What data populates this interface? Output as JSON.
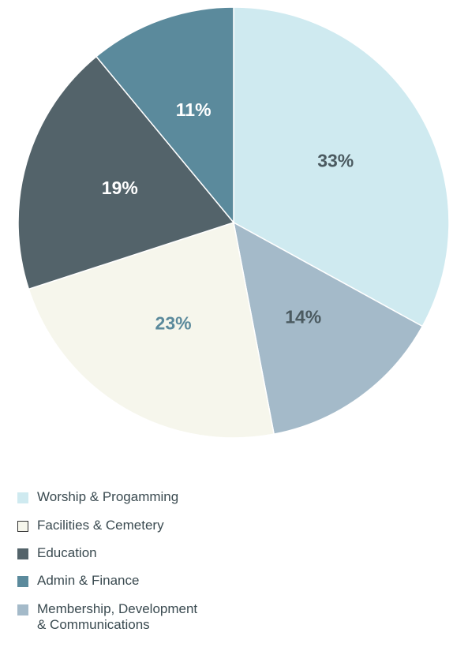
{
  "chart_data": {
    "type": "pie",
    "title": "",
    "slices": [
      {
        "label": "Worship & Progamming",
        "value": 33,
        "value_label": "33%",
        "color": "#cfeaf0",
        "text_color": "#4b5a60",
        "stroke": "none"
      },
      {
        "label": "Membership, Development\n& Communications",
        "value": 14,
        "value_label": "14%",
        "color": "#a4bac9",
        "text_color": "#4b5a60",
        "stroke": "none"
      },
      {
        "label": "Facilities & Cemetery",
        "value": 23,
        "value_label": "23%",
        "color": "#f6f6ec",
        "text_color": "#5b8a9c",
        "stroke": "#333333"
      },
      {
        "label": "Education",
        "value": 19,
        "value_label": "19%",
        "color": "#53636a",
        "text_color": "#ffffff",
        "stroke": "none"
      },
      {
        "label": "Admin & Finance",
        "value": 11,
        "value_label": "11%",
        "color": "#5b8a9c",
        "text_color": "#ffffff",
        "stroke": "none"
      }
    ],
    "start_angle": "12 o'clock",
    "direction": "clockwise",
    "legend_position": "bottom-left",
    "legend_order": [
      0,
      2,
      3,
      4,
      1
    ]
  }
}
